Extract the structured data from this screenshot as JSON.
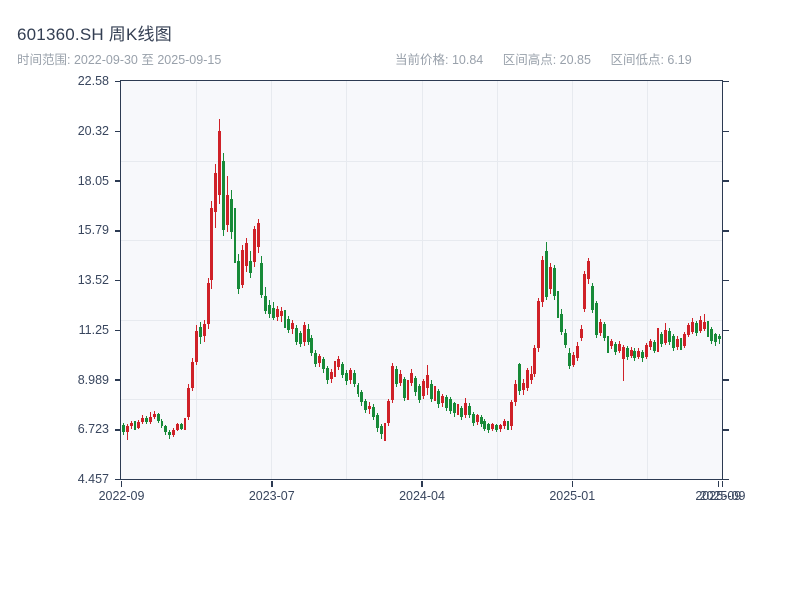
{
  "header": {
    "title": "601360.SH 周K线图",
    "subtitle": "时间范围: 2022-09-30 至 2025-09-15",
    "stats": {
      "current": "当前价格: 10.84",
      "high": "区间高点: 20.85",
      "low": "区间低点: 6.19"
    }
  },
  "chart_data": {
    "type": "candlestick",
    "title": "601360.SH 周K线图",
    "symbol": "601360.SH",
    "interval": "weekly",
    "date_range_start": "2022-09-30",
    "date_range_end": "2025-09-15",
    "current_price": 10.84,
    "range_high": 20.85,
    "range_low": 6.19,
    "grid": "on",
    "plot_bg": "#f7f8fb",
    "axis_color": "#2c3a52",
    "up_color": "#cf2128",
    "down_color": "#178a38",
    "y_axis": {
      "min": 4.457,
      "max": 22.58,
      "ticks": [
        "22.58",
        "20.32",
        "18.05",
        "15.79",
        "13.52",
        "11.25",
        "8.989",
        "6.723",
        "4.457"
      ]
    },
    "x_axis": {
      "ticks": [
        {
          "label": "2022-09",
          "pos": 0.0
        },
        {
          "label": "2023-07",
          "pos": 0.25
        },
        {
          "label": "2024-04",
          "pos": 0.5
        },
        {
          "label": "2025-01",
          "pos": 0.75
        },
        {
          "label": "2025-09",
          "pos": 0.993
        },
        {
          "label": "2025-09",
          "pos": 1.0
        }
      ]
    },
    "candles_format": [
      "open",
      "high",
      "low",
      "close"
    ],
    "candles": [
      [
        6.9,
        7.0,
        6.45,
        6.6
      ],
      [
        6.6,
        6.95,
        6.25,
        6.85
      ],
      [
        6.85,
        7.1,
        6.75,
        7.0
      ],
      [
        7.0,
        7.08,
        6.7,
        6.8
      ],
      [
        6.8,
        7.15,
        6.72,
        7.05
      ],
      [
        7.05,
        7.35,
        6.95,
        7.25
      ],
      [
        7.25,
        7.32,
        6.95,
        7.05
      ],
      [
        7.05,
        7.5,
        6.98,
        7.3
      ],
      [
        7.3,
        7.55,
        7.18,
        7.4
      ],
      [
        7.4,
        7.48,
        7.0,
        7.1
      ],
      [
        7.1,
        7.18,
        6.78,
        6.85
      ],
      [
        6.85,
        6.92,
        6.45,
        6.6
      ],
      [
        6.6,
        6.7,
        6.3,
        6.45
      ],
      [
        6.45,
        6.78,
        6.38,
        6.7
      ],
      [
        6.7,
        7.02,
        6.62,
        6.95
      ],
      [
        6.95,
        7.0,
        6.68,
        6.75
      ],
      [
        6.75,
        7.25,
        6.7,
        7.1
      ],
      [
        7.3,
        8.8,
        7.15,
        8.6
      ],
      [
        8.6,
        9.95,
        8.45,
        9.8
      ],
      [
        9.8,
        11.45,
        9.65,
        11.2
      ],
      [
        11.4,
        11.6,
        10.6,
        10.9
      ],
      [
        10.95,
        11.7,
        10.7,
        11.5
      ],
      [
        11.5,
        13.6,
        11.3,
        13.4
      ],
      [
        13.5,
        17.1,
        13.1,
        16.8
      ],
      [
        16.6,
        18.8,
        15.9,
        18.4
      ],
      [
        17.4,
        20.85,
        17.0,
        20.3
      ],
      [
        18.95,
        19.3,
        15.5,
        15.8
      ],
      [
        16.0,
        18.25,
        15.7,
        17.4
      ],
      [
        17.2,
        17.6,
        15.4,
        15.7
      ],
      [
        16.55,
        16.8,
        14.3,
        14.5
      ],
      [
        14.4,
        14.7,
        12.9,
        13.1
      ],
      [
        13.3,
        15.1,
        13.15,
        14.9
      ],
      [
        14.15,
        15.45,
        13.9,
        15.2
      ],
      [
        14.4,
        14.85,
        13.6,
        13.85
      ],
      [
        14.35,
        16.0,
        14.1,
        15.85
      ],
      [
        15.0,
        16.3,
        14.75,
        16.1
      ],
      [
        14.3,
        14.6,
        12.7,
        12.85
      ],
      [
        12.8,
        13.2,
        11.95,
        12.1
      ],
      [
        12.4,
        12.6,
        11.8,
        11.95
      ],
      [
        12.25,
        12.5,
        11.7,
        11.8
      ],
      [
        11.85,
        12.35,
        11.65,
        12.2
      ],
      [
        11.9,
        12.3,
        11.6,
        12.1
      ],
      [
        12.0,
        12.15,
        11.35,
        11.5
      ],
      [
        11.75,
        11.9,
        11.1,
        11.25
      ],
      [
        11.3,
        11.7,
        11.05,
        11.55
      ],
      [
        11.35,
        11.45,
        10.55,
        10.7
      ],
      [
        11.1,
        11.2,
        10.45,
        10.6
      ],
      [
        10.7,
        11.6,
        10.5,
        11.45
      ],
      [
        11.3,
        11.5,
        10.55,
        10.7
      ],
      [
        10.9,
        11.0,
        10.05,
        10.2
      ],
      [
        10.2,
        10.35,
        9.55,
        9.7
      ],
      [
        9.75,
        10.15,
        9.55,
        10.05
      ],
      [
        9.9,
        10.0,
        9.3,
        9.45
      ],
      [
        9.5,
        9.6,
        8.8,
        8.95
      ],
      [
        9.0,
        9.45,
        8.85,
        9.35
      ],
      [
        9.3,
        9.85,
        9.1,
        9.75
      ],
      [
        9.55,
        10.05,
        9.4,
        9.9
      ],
      [
        9.7,
        9.8,
        9.05,
        9.2
      ],
      [
        9.3,
        9.4,
        8.75,
        8.9
      ],
      [
        8.95,
        9.5,
        8.8,
        9.4
      ],
      [
        9.3,
        9.4,
        8.65,
        8.8
      ],
      [
        8.75,
        8.85,
        8.2,
        8.35
      ],
      [
        8.4,
        8.5,
        7.8,
        7.95
      ],
      [
        8.0,
        8.1,
        7.45,
        7.6
      ],
      [
        7.65,
        7.95,
        7.4,
        7.8
      ],
      [
        7.75,
        7.85,
        7.15,
        7.3
      ],
      [
        7.35,
        7.45,
        6.6,
        6.8
      ],
      [
        6.85,
        6.95,
        6.3,
        6.5
      ],
      [
        6.5,
        7.0,
        6.19,
        6.9
      ],
      [
        7.0,
        8.1,
        6.85,
        8.0
      ],
      [
        8.05,
        9.75,
        7.9,
        9.6
      ],
      [
        9.45,
        9.6,
        8.65,
        8.8
      ],
      [
        8.85,
        9.4,
        8.7,
        9.25
      ],
      [
        9.0,
        9.1,
        8.0,
        8.15
      ],
      [
        8.2,
        8.95,
        8.05,
        8.8
      ],
      [
        8.85,
        9.45,
        8.7,
        9.3
      ],
      [
        9.05,
        9.15,
        8.25,
        8.4
      ],
      [
        8.7,
        8.8,
        7.9,
        8.05
      ],
      [
        8.25,
        9.0,
        8.1,
        8.9
      ],
      [
        8.6,
        9.65,
        8.3,
        9.2
      ],
      [
        8.8,
        8.95,
        7.95,
        8.1
      ],
      [
        8.15,
        8.7,
        8.0,
        8.6
      ],
      [
        8.45,
        8.55,
        7.7,
        7.85
      ],
      [
        7.9,
        8.35,
        7.75,
        8.25
      ],
      [
        8.2,
        8.3,
        7.55,
        7.7
      ],
      [
        8.1,
        8.18,
        7.42,
        7.55
      ],
      [
        7.9,
        7.98,
        7.3,
        7.45
      ],
      [
        7.5,
        7.88,
        7.38,
        7.8
      ],
      [
        7.7,
        7.78,
        7.15,
        7.3
      ],
      [
        7.35,
        8.15,
        7.25,
        7.9
      ],
      [
        7.8,
        7.9,
        7.22,
        7.35
      ],
      [
        7.4,
        7.5,
        6.88,
        7.0
      ],
      [
        7.05,
        7.42,
        6.92,
        7.35
      ],
      [
        7.3,
        7.38,
        6.82,
        6.95
      ],
      [
        7.1,
        7.18,
        6.62,
        6.75
      ],
      [
        6.95,
        7.02,
        6.55,
        6.7
      ],
      [
        6.75,
        7.0,
        6.62,
        6.95
      ],
      [
        6.9,
        6.98,
        6.58,
        6.7
      ],
      [
        6.72,
        6.95,
        6.6,
        6.9
      ],
      [
        6.85,
        7.18,
        6.72,
        7.1
      ],
      [
        7.05,
        7.12,
        6.68,
        6.8
      ],
      [
        6.85,
        8.05,
        6.7,
        7.95
      ],
      [
        7.95,
        8.95,
        7.8,
        8.8
      ],
      [
        9.7,
        9.75,
        8.3,
        8.45
      ],
      [
        8.5,
        9.0,
        8.3,
        8.85
      ],
      [
        8.6,
        9.5,
        8.45,
        9.4
      ],
      [
        8.95,
        9.6,
        8.8,
        9.25
      ],
      [
        9.25,
        10.55,
        9.1,
        10.4
      ],
      [
        10.4,
        12.7,
        10.25,
        12.55
      ],
      [
        12.5,
        14.6,
        12.3,
        14.45
      ],
      [
        14.85,
        15.27,
        12.6,
        12.75
      ],
      [
        13.1,
        14.3,
        12.9,
        14.1
      ],
      [
        14.05,
        14.2,
        12.6,
        12.8
      ],
      [
        12.75,
        13.0,
        11.8,
        11.95
      ],
      [
        11.95,
        12.2,
        11.0,
        11.15
      ],
      [
        11.1,
        11.3,
        10.4,
        10.55
      ],
      [
        10.2,
        10.4,
        9.45,
        9.6
      ],
      [
        9.65,
        10.25,
        9.55,
        10.1
      ],
      [
        9.95,
        10.7,
        9.85,
        10.5
      ],
      [
        10.9,
        11.45,
        10.75,
        11.3
      ],
      [
        12.2,
        13.95,
        12.05,
        13.8
      ],
      [
        13.55,
        14.5,
        13.35,
        14.4
      ],
      [
        13.25,
        13.4,
        12.0,
        12.15
      ],
      [
        12.45,
        12.55,
        10.9,
        11.0
      ],
      [
        11.1,
        11.75,
        10.95,
        11.6
      ],
      [
        11.5,
        11.6,
        10.75,
        10.9
      ],
      [
        10.85,
        10.95,
        10.2,
        10.45
      ],
      [
        10.5,
        10.85,
        10.38,
        10.75
      ],
      [
        10.6,
        10.7,
        10.1,
        10.25
      ],
      [
        10.3,
        10.72,
        10.18,
        10.6
      ],
      [
        9.9,
        10.55,
        8.94,
        10.45
      ],
      [
        10.4,
        10.5,
        9.88,
        10.0
      ],
      [
        10.05,
        10.45,
        9.95,
        10.35
      ],
      [
        10.3,
        10.4,
        9.82,
        9.95
      ],
      [
        10.0,
        10.42,
        9.9,
        10.3
      ],
      [
        10.25,
        10.35,
        9.8,
        9.95
      ],
      [
        10.0,
        10.65,
        9.9,
        10.55
      ],
      [
        10.45,
        10.85,
        10.35,
        10.75
      ],
      [
        10.7,
        10.8,
        10.18,
        10.3
      ],
      [
        10.35,
        11.35,
        10.25,
        11.1
      ],
      [
        11.05,
        11.15,
        10.48,
        10.6
      ],
      [
        10.65,
        11.55,
        10.55,
        11.25
      ],
      [
        11.2,
        11.32,
        10.58,
        10.7
      ],
      [
        10.95,
        11.05,
        10.28,
        10.4
      ],
      [
        10.45,
        10.95,
        10.35,
        10.85
      ],
      [
        10.8,
        10.9,
        10.32,
        10.45
      ],
      [
        10.5,
        11.15,
        10.4,
        11.05
      ],
      [
        11.0,
        11.55,
        10.9,
        11.45
      ],
      [
        11.15,
        11.8,
        11.05,
        11.6
      ],
      [
        11.55,
        11.65,
        10.98,
        11.1
      ],
      [
        11.2,
        11.9,
        11.1,
        11.7
      ],
      [
        11.3,
        11.95,
        11.18,
        11.6
      ],
      [
        11.55,
        11.65,
        10.92,
        11.05
      ],
      [
        11.3,
        11.4,
        10.62,
        10.75
      ],
      [
        11.05,
        11.12,
        10.52,
        10.7
      ],
      [
        10.95,
        11.05,
        10.6,
        10.84
      ]
    ]
  }
}
